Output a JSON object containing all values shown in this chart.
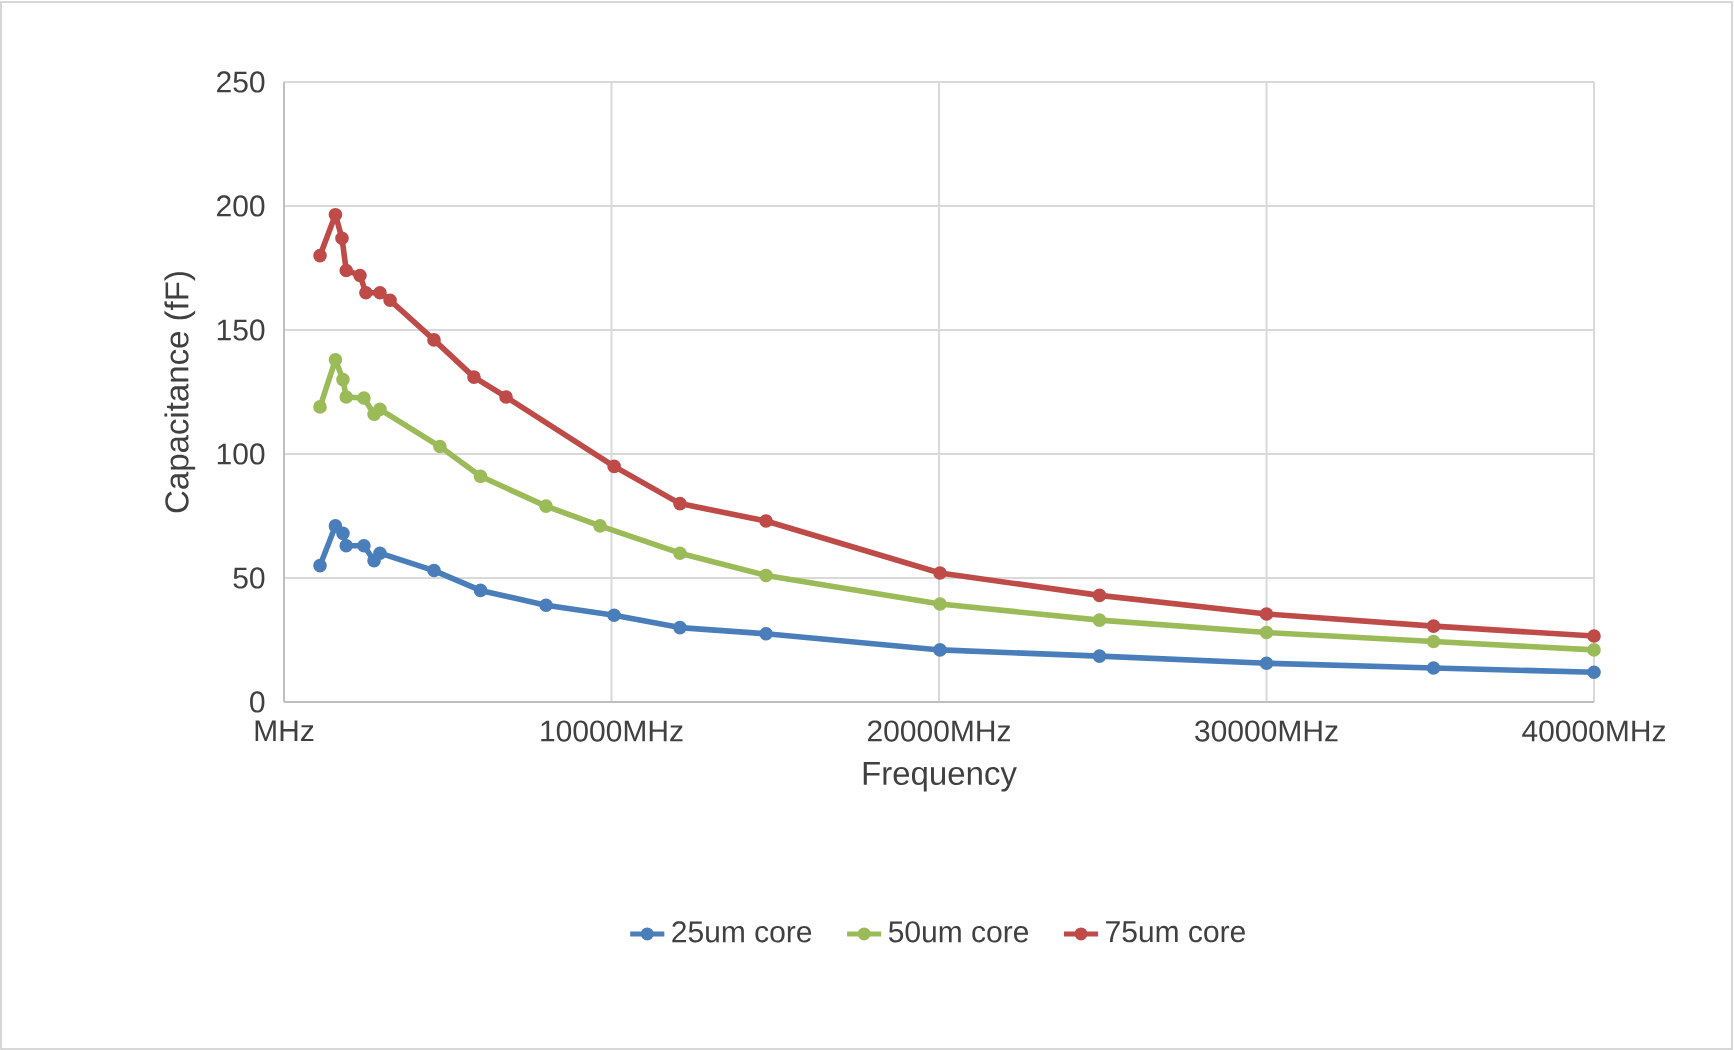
{
  "chart_data": {
    "type": "line",
    "xlabel": "Frequency",
    "ylabel": "Capacitance (fF)",
    "xlim": [
      0,
      40000
    ],
    "ylim": [
      0,
      250
    ],
    "xticks": [
      {
        "value": 0,
        "label": "MHz"
      },
      {
        "value": 10000,
        "label": "10000MHz"
      },
      {
        "value": 20000,
        "label": "20000MHz"
      },
      {
        "value": 30000,
        "label": "30000MHz"
      },
      {
        "value": 40000,
        "label": "40000MHz"
      }
    ],
    "yticks": [
      0,
      50,
      100,
      150,
      200,
      250
    ],
    "grid": true,
    "legend": "bottom",
    "marker": "circle",
    "series": [
      {
        "name": "25um core",
        "color": "#4a7ebb",
        "x": [
          1100,
          1570,
          1800,
          1900,
          2440,
          2750,
          2930,
          4580,
          6000,
          8000,
          10080,
          12090,
          14720,
          20030,
          24900,
          30000,
          35100,
          40000
        ],
        "values": [
          55,
          71,
          68,
          63,
          63,
          57,
          60,
          53,
          45,
          39,
          35,
          30,
          27.5,
          21,
          18.5,
          15.6,
          13.7,
          12
        ]
      },
      {
        "name": "50um core",
        "color": "#9bbb59",
        "x": [
          1100,
          1570,
          1800,
          1900,
          2440,
          2750,
          2930,
          4760,
          6000,
          8000,
          9650,
          12090,
          14720,
          20030,
          24900,
          30000,
          35100,
          40000
        ],
        "values": [
          119,
          138,
          130,
          123,
          122.6,
          116,
          118,
          103,
          91,
          79,
          71,
          60,
          51,
          39.5,
          33,
          28,
          24.4,
          21
        ]
      },
      {
        "name": "75um core",
        "color": "#be4b48",
        "x": [
          1100,
          1570,
          1770,
          1900,
          2320,
          2500,
          2930,
          3240,
          4580,
          5800,
          6780,
          10080,
          12090,
          14720,
          20030,
          24900,
          30000,
          35100,
          40000
        ],
        "values": [
          180,
          196.5,
          187,
          174,
          172,
          165,
          165,
          162,
          146,
          131,
          123,
          95,
          80,
          73,
          52,
          43,
          35.5,
          30.6,
          26.6
        ]
      }
    ]
  }
}
